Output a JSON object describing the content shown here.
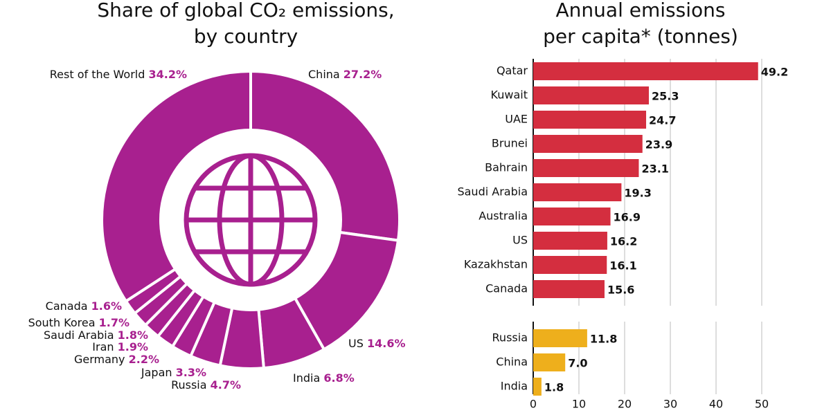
{
  "chart_data": [
    {
      "type": "donut",
      "title": [
        "Share of global CO₂ emissions,",
        "by country"
      ],
      "categories": [
        "China",
        "US",
        "India",
        "Russia",
        "Japan",
        "Germany",
        "Iran",
        "Saudi Arabia",
        "South Korea",
        "Canada",
        "Rest of the World"
      ],
      "values": [
        27.2,
        14.6,
        6.8,
        4.7,
        3.3,
        2.2,
        1.9,
        1.8,
        1.7,
        1.6,
        34.2
      ],
      "value_labels": [
        "27.2%",
        "14.6%",
        "6.8%",
        "4.7%",
        "3.3%",
        "2.2%",
        "1.9%",
        "1.8%",
        "1.7%",
        "1.6%",
        "34.2%"
      ],
      "color": "#a8208f"
    },
    {
      "type": "hbar",
      "title": [
        "Annual emissions",
        "per capita* (tonnes)"
      ],
      "categories": [
        "Qatar",
        "Kuwait",
        "UAE",
        "Brunei",
        "Bahrain",
        "Saudi Arabia",
        "Australia",
        "US",
        "Kazakhstan",
        "Canada",
        "Russia",
        "China",
        "India"
      ],
      "values": [
        49.2,
        25.3,
        24.7,
        23.9,
        23.1,
        19.3,
        16.9,
        16.2,
        16.1,
        15.6,
        11.8,
        7.0,
        1.8
      ],
      "value_labels": [
        "49.2",
        "25.3",
        "24.7",
        "23.9",
        "23.1",
        "19.3",
        "16.9",
        "16.2",
        "16.1",
        "15.6",
        "11.8",
        "7.0",
        "1.8"
      ],
      "colors": [
        "#d42e3f",
        "#d42e3f",
        "#d42e3f",
        "#d42e3f",
        "#d42e3f",
        "#d42e3f",
        "#d42e3f",
        "#d42e3f",
        "#d42e3f",
        "#d42e3f",
        "#eeaf1c",
        "#eeaf1c",
        "#eeaf1c"
      ],
      "xlim": [
        0,
        50
      ],
      "xticks": [
        0,
        10,
        20,
        30,
        40,
        50
      ],
      "grid": true
    }
  ]
}
